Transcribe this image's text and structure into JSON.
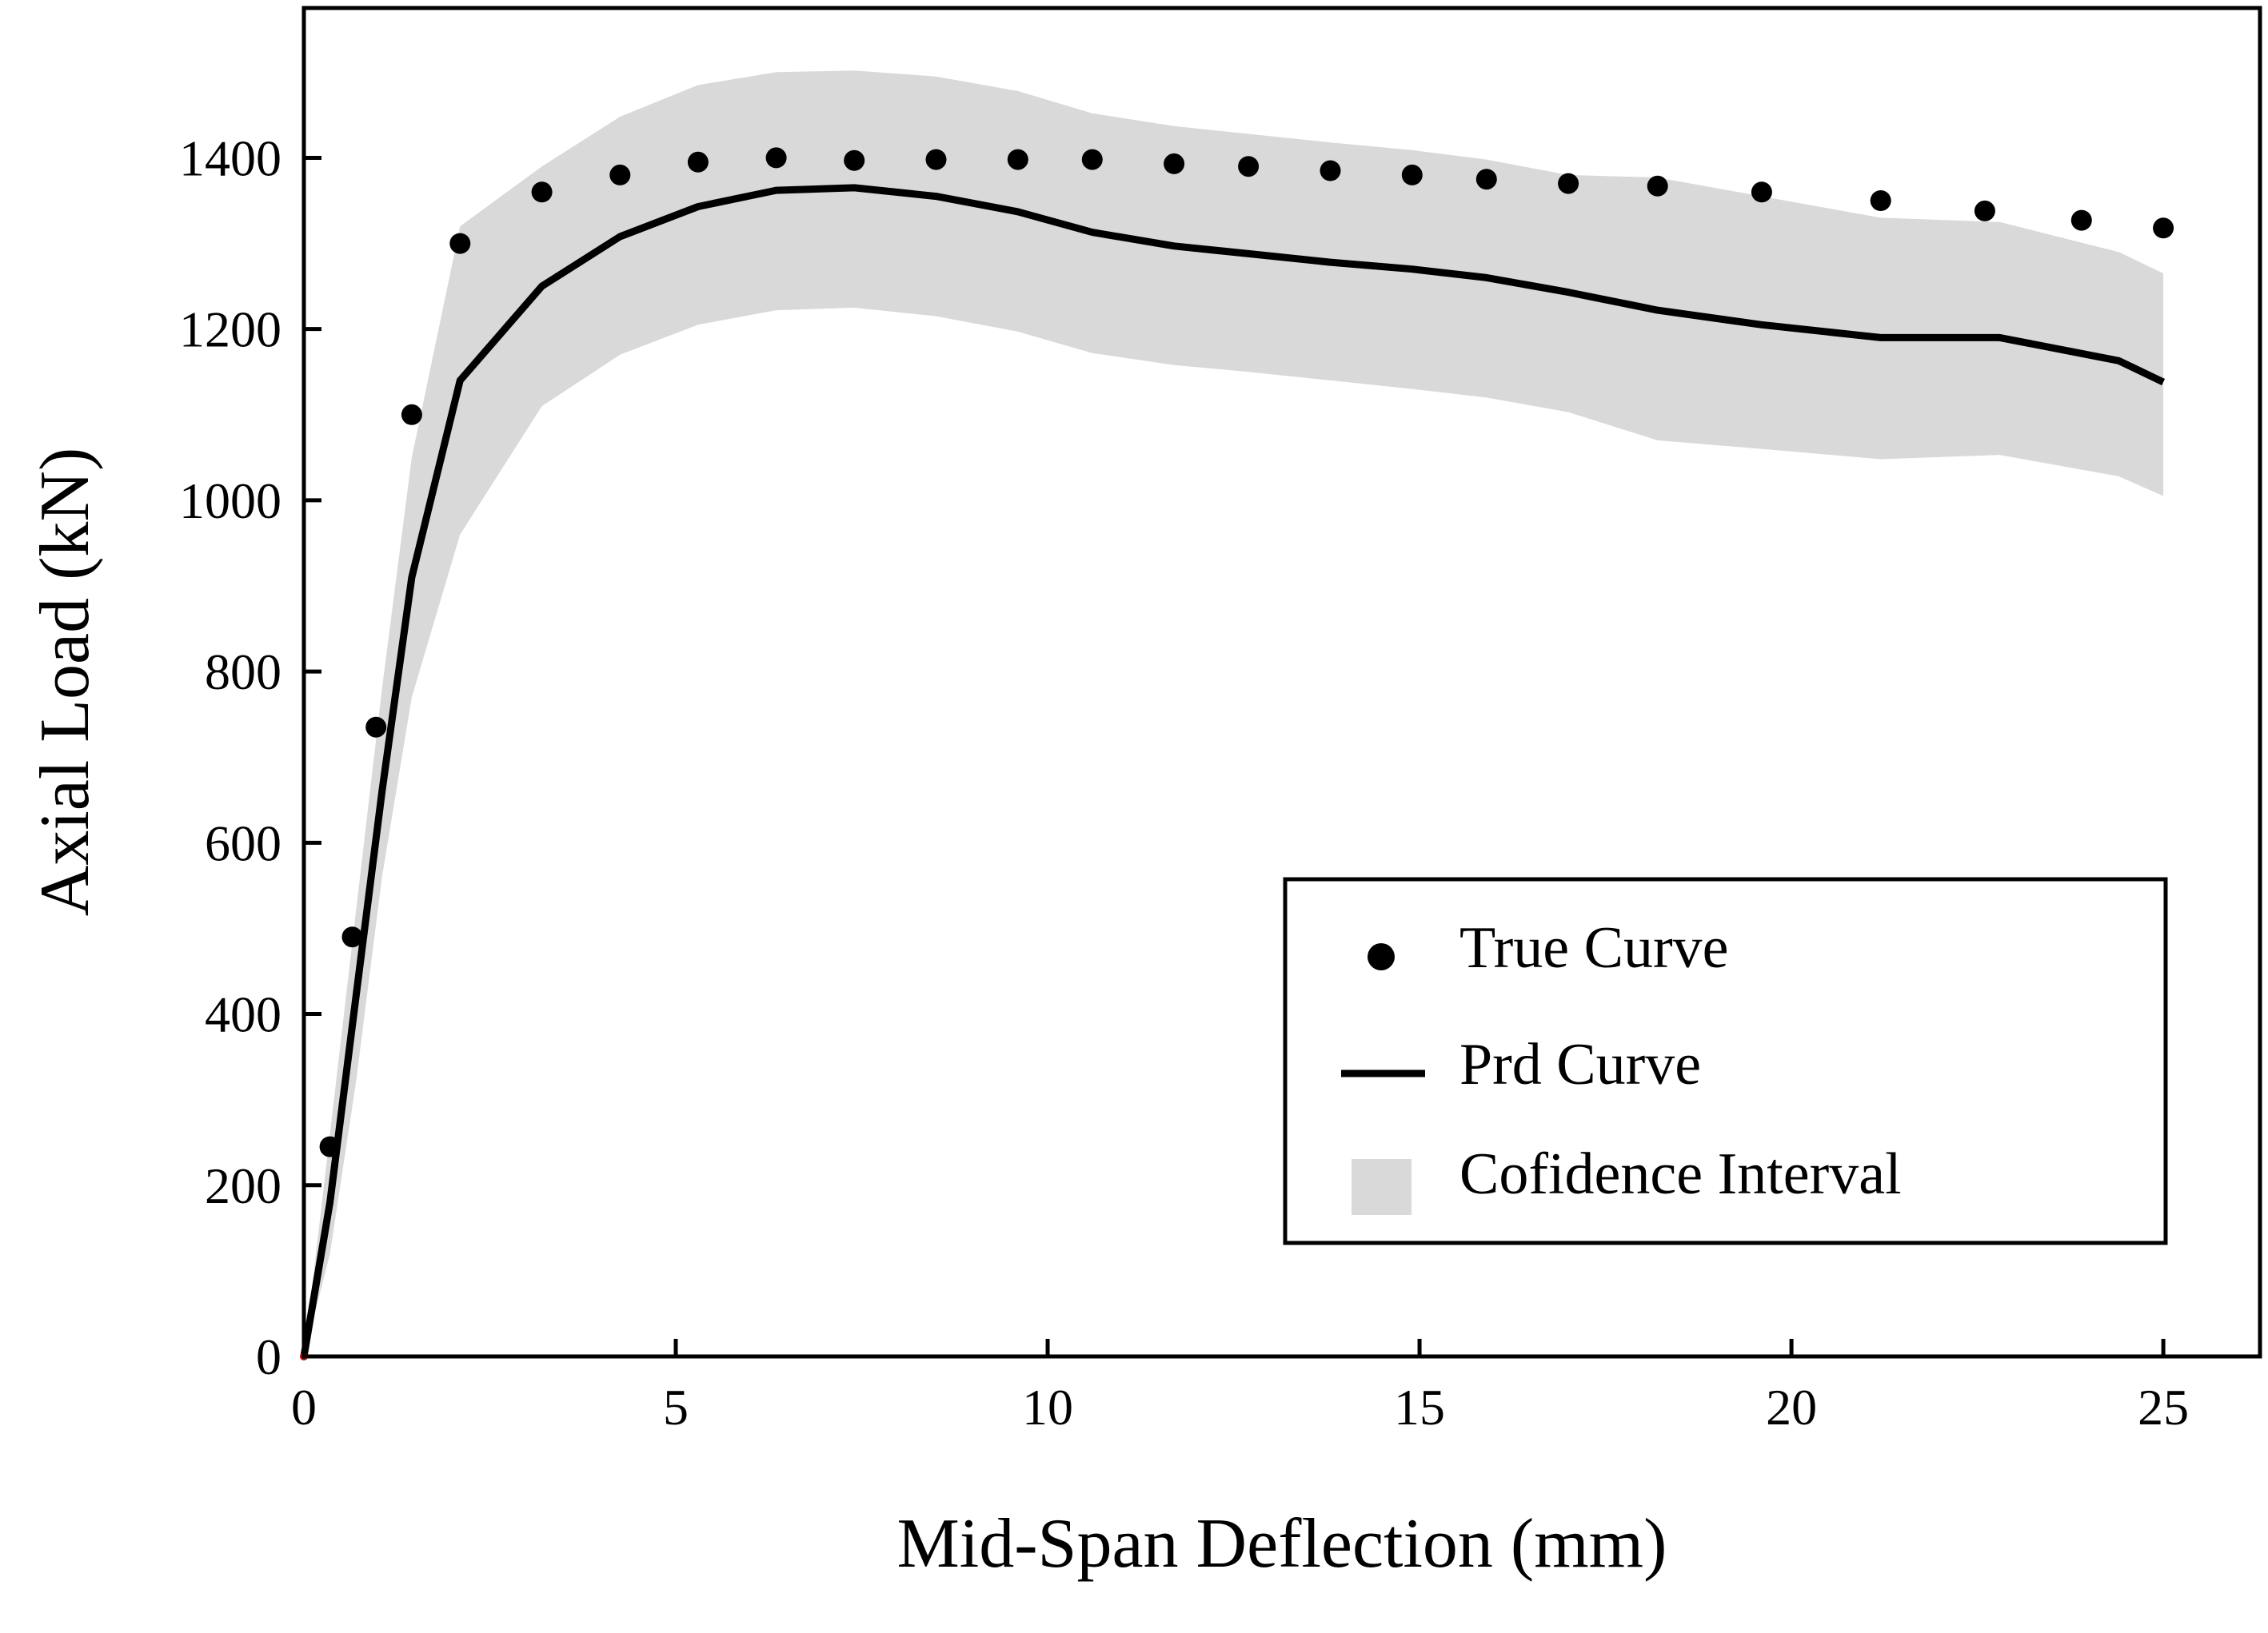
{
  "chart_data": {
    "type": "line",
    "title": "",
    "xlabel": "Mid-Span Deflection (mm)",
    "ylabel": "Axial Load (kN)",
    "xlim": [
      0,
      26.3
    ],
    "ylim": [
      0,
      1575
    ],
    "xticks": [
      0,
      5,
      10,
      15,
      20,
      25
    ],
    "yticks": [
      0,
      200,
      400,
      600,
      800,
      1000,
      1200,
      1400
    ],
    "grid": false,
    "legend_position": "lower-right",
    "colors": {
      "true_curve": "#000000",
      "prd_curve": "#000000",
      "confidence_fill": "#d9d9d9",
      "origin_marker": "#cc0000"
    },
    "series": [
      {
        "name": "True Curve",
        "style": "scatter",
        "x": [
          0.35,
          0.65,
          0.97,
          1.45,
          2.1,
          3.2,
          4.25,
          5.3,
          6.35,
          7.4,
          8.5,
          9.6,
          10.6,
          11.7,
          12.7,
          13.8,
          14.9,
          15.9,
          17.0,
          18.2,
          19.6,
          21.2,
          22.6,
          23.9,
          25.0
        ],
        "y": [
          245,
          490,
          735,
          1100,
          1300,
          1360,
          1380,
          1395,
          1400,
          1397,
          1398,
          1398,
          1398,
          1393,
          1390,
          1385,
          1380,
          1375,
          1370,
          1367,
          1360,
          1350,
          1338,
          1327,
          1318
        ]
      },
      {
        "name": "Prd Curve",
        "style": "line",
        "x": [
          0,
          0.35,
          0.7,
          1.05,
          1.45,
          2.1,
          3.2,
          4.25,
          5.3,
          6.35,
          7.4,
          8.5,
          9.6,
          10.6,
          11.7,
          12.7,
          13.8,
          14.9,
          15.9,
          17.0,
          18.2,
          19.6,
          21.2,
          22.8,
          24.4,
          25.0
        ],
        "y": [
          0,
          180,
          420,
          660,
          910,
          1140,
          1250,
          1308,
          1343,
          1362,
          1365,
          1355,
          1337,
          1313,
          1297,
          1288,
          1278,
          1270,
          1260,
          1243,
          1222,
          1205,
          1190,
          1190,
          1163,
          1138
        ]
      },
      {
        "name": "Cofidence Interval",
        "style": "band",
        "x": [
          0,
          0.35,
          0.7,
          1.05,
          1.45,
          2.1,
          3.2,
          4.25,
          5.3,
          6.35,
          7.4,
          8.5,
          9.6,
          10.6,
          11.7,
          12.7,
          13.8,
          14.9,
          15.9,
          17.0,
          18.2,
          19.6,
          21.2,
          22.8,
          24.4,
          25.0
        ],
        "upper": [
          0,
          260,
          520,
          780,
          1050,
          1320,
          1390,
          1448,
          1485,
          1500,
          1502,
          1495,
          1478,
          1452,
          1437,
          1428,
          1418,
          1409,
          1398,
          1380,
          1377,
          1355,
          1330,
          1325,
          1290,
          1265
        ],
        "lower": [
          0,
          120,
          320,
          560,
          770,
          960,
          1110,
          1170,
          1205,
          1222,
          1225,
          1215,
          1197,
          1172,
          1158,
          1150,
          1140,
          1130,
          1120,
          1103,
          1070,
          1060,
          1048,
          1053,
          1028,
          1005
        ]
      }
    ]
  }
}
